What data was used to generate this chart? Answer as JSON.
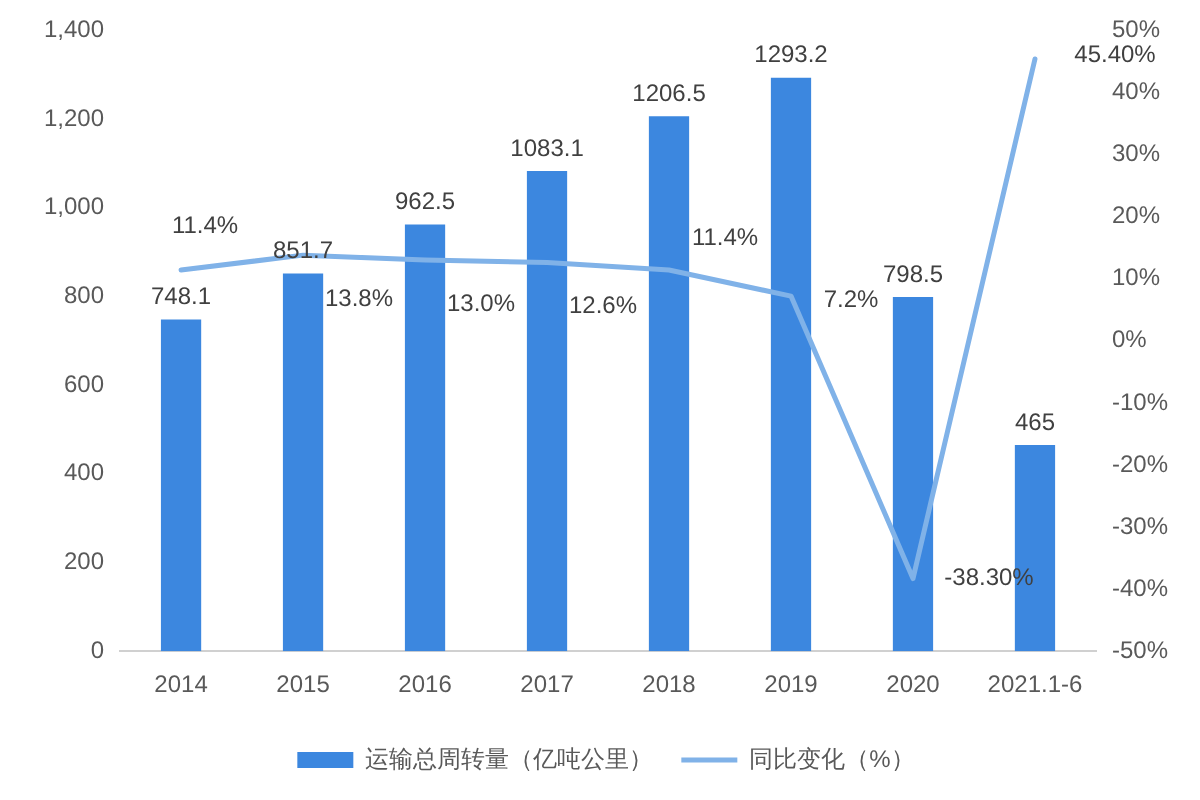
{
  "chart_data": {
    "type": "bar",
    "categories": [
      "2014",
      "2015",
      "2016",
      "2017",
      "2018",
      "2019",
      "2020",
      "2021.1-6"
    ],
    "series": [
      {
        "name": "运输总周转量（亿吨公里）",
        "color": "#3c87df",
        "values": [
          748.1,
          851.7,
          962.5,
          1083.1,
          1206.5,
          1293.2,
          798.5,
          465
        ],
        "value_labels": [
          "748.1",
          "851.7",
          "962.5",
          "1083.1",
          "1206.5",
          "1293.2",
          "798.5",
          "465"
        ]
      },
      {
        "name": "同比变化（%）",
        "type": "line",
        "axis": "y2",
        "color": "#80b2e8",
        "values": [
          11.4,
          13.8,
          13.0,
          12.6,
          11.4,
          7.2,
          -38.3,
          45.4
        ],
        "value_labels": [
          "11.4%",
          "13.8%",
          "13.0%",
          "12.6%",
          "11.4%",
          "7.2%",
          "-38.30%",
          "45.40%"
        ]
      }
    ],
    "ylim": [
      0,
      1400
    ],
    "yticks": [
      0,
      200,
      400,
      600,
      800,
      {
        "value": 1000,
        "label": "1,000"
      },
      {
        "value": 1200,
        "label": "1,200"
      },
      {
        "value": 1400,
        "label": "1,400"
      }
    ],
    "y2lim": [
      -50,
      50
    ],
    "y2ticks": [
      {
        "value": -50,
        "label": "-50%"
      },
      {
        "value": -40,
        "label": "-40%"
      },
      {
        "value": -30,
        "label": "-30%"
      },
      {
        "value": -20,
        "label": "-20%"
      },
      {
        "value": -10,
        "label": "-10%"
      },
      {
        "value": 0,
        "label": "0%"
      },
      {
        "value": 10,
        "label": "10%"
      },
      {
        "value": 20,
        "label": "20%"
      },
      {
        "value": 30,
        "label": "30%"
      },
      {
        "value": 40,
        "label": "40%"
      },
      {
        "value": 50,
        "label": "50%"
      }
    ],
    "grid": false,
    "legend": "bottom",
    "marker": "none",
    "line_style": "solid"
  }
}
